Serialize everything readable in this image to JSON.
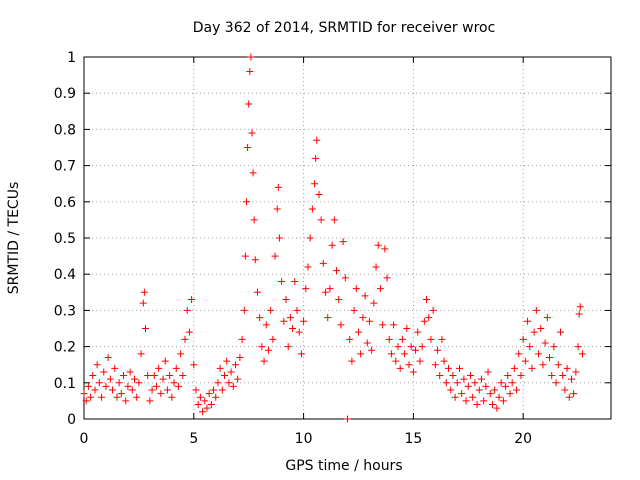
{
  "chart_data": {
    "type": "scatter",
    "title": "Day 362 of 2014, SRMTID for receiver wroc",
    "xlabel": "GPS time / hours",
    "ylabel": "SRMTID / TECUs",
    "xlim": [
      0,
      24
    ],
    "ylim": [
      0,
      1
    ],
    "xticks": [
      0,
      5,
      10,
      15,
      20
    ],
    "xtick_labels": [
      "0",
      "5",
      "10",
      "15",
      "20"
    ],
    "yticks": [
      0,
      0.1,
      0.2,
      0.3,
      0.4,
      0.5,
      0.6,
      0.7,
      0.8,
      0.9,
      1
    ],
    "ytick_labels": [
      "0",
      "0.1",
      "0.2",
      "0.3",
      "0.4",
      "0.5",
      "0.6",
      "0.7",
      "0.8",
      "0.9",
      "1"
    ],
    "grid": true,
    "marker": "+",
    "series": [
      {
        "name": "SRMTID",
        "color": "#ff0000",
        "points": [
          [
            0.0,
            0.07
          ],
          [
            0.1,
            0.05
          ],
          [
            0.2,
            0.09
          ],
          [
            0.3,
            0.06
          ],
          [
            0.4,
            0.12
          ],
          [
            0.5,
            0.08
          ],
          [
            0.6,
            0.15
          ],
          [
            0.7,
            0.1
          ],
          [
            0.8,
            0.06
          ],
          [
            0.9,
            0.13
          ],
          [
            1.0,
            0.09
          ],
          [
            1.1,
            0.17
          ],
          [
            1.2,
            0.11
          ],
          [
            1.3,
            0.08
          ],
          [
            1.4,
            0.14
          ],
          [
            1.5,
            0.06
          ],
          [
            1.6,
            0.1
          ],
          [
            1.7,
            0.07
          ],
          [
            1.8,
            0.12
          ],
          [
            1.9,
            0.05
          ],
          [
            2.0,
            0.09
          ],
          [
            2.1,
            0.13
          ],
          [
            2.2,
            0.08
          ],
          [
            2.3,
            0.11
          ],
          [
            2.4,
            0.06
          ],
          [
            2.5,
            0.1
          ],
          [
            2.6,
            0.18
          ],
          [
            2.7,
            0.32
          ],
          [
            2.75,
            0.35
          ],
          [
            2.8,
            0.25
          ],
          [
            2.9,
            0.12
          ],
          [
            3.0,
            0.05
          ],
          [
            3.1,
            0.08
          ],
          [
            3.2,
            0.12
          ],
          [
            3.3,
            0.09
          ],
          [
            3.4,
            0.14
          ],
          [
            3.5,
            0.07
          ],
          [
            3.6,
            0.11
          ],
          [
            3.7,
            0.16
          ],
          [
            3.8,
            0.08
          ],
          [
            3.9,
            0.12
          ],
          [
            4.0,
            0.06
          ],
          [
            4.1,
            0.1
          ],
          [
            4.2,
            0.14
          ],
          [
            4.3,
            0.09
          ],
          [
            4.4,
            0.18
          ],
          [
            4.5,
            0.12
          ],
          [
            4.6,
            0.22
          ],
          [
            4.7,
            0.3
          ],
          [
            4.8,
            0.24
          ],
          [
            4.9,
            0.33
          ],
          [
            5.0,
            0.15
          ],
          [
            5.1,
            0.08
          ],
          [
            5.2,
            0.04
          ],
          [
            5.3,
            0.06
          ],
          [
            5.4,
            0.02
          ],
          [
            5.5,
            0.05
          ],
          [
            5.6,
            0.03
          ],
          [
            5.7,
            0.07
          ],
          [
            5.8,
            0.04
          ],
          [
            5.9,
            0.08
          ],
          [
            6.0,
            0.06
          ],
          [
            6.1,
            0.1
          ],
          [
            6.2,
            0.14
          ],
          [
            6.3,
            0.08
          ],
          [
            6.4,
            0.12
          ],
          [
            6.5,
            0.16
          ],
          [
            6.6,
            0.1
          ],
          [
            6.7,
            0.13
          ],
          [
            6.8,
            0.09
          ],
          [
            6.9,
            0.15
          ],
          [
            7.0,
            0.11
          ],
          [
            7.1,
            0.17
          ],
          [
            7.2,
            0.22
          ],
          [
            7.3,
            0.3
          ],
          [
            7.35,
            0.45
          ],
          [
            7.4,
            0.6
          ],
          [
            7.45,
            0.75
          ],
          [
            7.5,
            0.87
          ],
          [
            7.55,
            0.96
          ],
          [
            7.6,
            1.0
          ],
          [
            7.65,
            0.79
          ],
          [
            7.7,
            0.68
          ],
          [
            7.75,
            0.55
          ],
          [
            7.8,
            0.44
          ],
          [
            7.9,
            0.35
          ],
          [
            8.0,
            0.28
          ],
          [
            8.1,
            0.2
          ],
          [
            8.2,
            0.16
          ],
          [
            8.3,
            0.26
          ],
          [
            8.4,
            0.19
          ],
          [
            8.5,
            0.3
          ],
          [
            8.6,
            0.22
          ],
          [
            8.7,
            0.45
          ],
          [
            8.8,
            0.58
          ],
          [
            8.85,
            0.64
          ],
          [
            8.9,
            0.5
          ],
          [
            9.0,
            0.38
          ],
          [
            9.1,
            0.27
          ],
          [
            9.2,
            0.33
          ],
          [
            9.3,
            0.2
          ],
          [
            9.4,
            0.28
          ],
          [
            9.5,
            0.25
          ],
          [
            9.6,
            0.38
          ],
          [
            9.7,
            0.3
          ],
          [
            9.8,
            0.24
          ],
          [
            9.9,
            0.18
          ],
          [
            10.0,
            0.27
          ],
          [
            10.1,
            0.36
          ],
          [
            10.2,
            0.42
          ],
          [
            10.3,
            0.5
          ],
          [
            10.4,
            0.58
          ],
          [
            10.5,
            0.65
          ],
          [
            10.55,
            0.72
          ],
          [
            10.6,
            0.77
          ],
          [
            10.7,
            0.62
          ],
          [
            10.8,
            0.55
          ],
          [
            10.9,
            0.43
          ],
          [
            11.0,
            0.35
          ],
          [
            11.1,
            0.28
          ],
          [
            11.2,
            0.36
          ],
          [
            11.3,
            0.48
          ],
          [
            11.4,
            0.55
          ],
          [
            11.5,
            0.41
          ],
          [
            11.6,
            0.33
          ],
          [
            11.7,
            0.26
          ],
          [
            11.8,
            0.49
          ],
          [
            11.9,
            0.39
          ],
          [
            12.0,
            0.0
          ],
          [
            12.1,
            0.22
          ],
          [
            12.2,
            0.16
          ],
          [
            12.3,
            0.3
          ],
          [
            12.4,
            0.36
          ],
          [
            12.5,
            0.24
          ],
          [
            12.6,
            0.18
          ],
          [
            12.7,
            0.28
          ],
          [
            12.8,
            0.34
          ],
          [
            12.9,
            0.21
          ],
          [
            13.0,
            0.27
          ],
          [
            13.1,
            0.19
          ],
          [
            13.2,
            0.32
          ],
          [
            13.3,
            0.42
          ],
          [
            13.4,
            0.48
          ],
          [
            13.5,
            0.36
          ],
          [
            13.6,
            0.26
          ],
          [
            13.7,
            0.47
          ],
          [
            13.8,
            0.39
          ],
          [
            13.9,
            0.22
          ],
          [
            14.0,
            0.18
          ],
          [
            14.1,
            0.26
          ],
          [
            14.2,
            0.16
          ],
          [
            14.3,
            0.2
          ],
          [
            14.4,
            0.14
          ],
          [
            14.5,
            0.22
          ],
          [
            14.6,
            0.18
          ],
          [
            14.7,
            0.25
          ],
          [
            14.8,
            0.15
          ],
          [
            14.9,
            0.2
          ],
          [
            15.0,
            0.13
          ],
          [
            15.1,
            0.19
          ],
          [
            15.2,
            0.24
          ],
          [
            15.3,
            0.16
          ],
          [
            15.4,
            0.2
          ],
          [
            15.5,
            0.27
          ],
          [
            15.6,
            0.33
          ],
          [
            15.7,
            0.28
          ],
          [
            15.8,
            0.22
          ],
          [
            15.9,
            0.3
          ],
          [
            16.0,
            0.15
          ],
          [
            16.1,
            0.19
          ],
          [
            16.2,
            0.12
          ],
          [
            16.3,
            0.22
          ],
          [
            16.4,
            0.16
          ],
          [
            16.5,
            0.1
          ],
          [
            16.6,
            0.14
          ],
          [
            16.7,
            0.08
          ],
          [
            16.8,
            0.12
          ],
          [
            16.9,
            0.06
          ],
          [
            17.0,
            0.1
          ],
          [
            17.1,
            0.14
          ],
          [
            17.2,
            0.07
          ],
          [
            17.3,
            0.11
          ],
          [
            17.4,
            0.05
          ],
          [
            17.5,
            0.09
          ],
          [
            17.6,
            0.12
          ],
          [
            17.7,
            0.06
          ],
          [
            17.8,
            0.1
          ],
          [
            17.9,
            0.04
          ],
          [
            18.0,
            0.08
          ],
          [
            18.1,
            0.11
          ],
          [
            18.2,
            0.05
          ],
          [
            18.3,
            0.09
          ],
          [
            18.4,
            0.13
          ],
          [
            18.5,
            0.07
          ],
          [
            18.6,
            0.04
          ],
          [
            18.7,
            0.08
          ],
          [
            18.8,
            0.03
          ],
          [
            18.9,
            0.06
          ],
          [
            19.0,
            0.1
          ],
          [
            19.1,
            0.05
          ],
          [
            19.2,
            0.09
          ],
          [
            19.3,
            0.12
          ],
          [
            19.4,
            0.07
          ],
          [
            19.5,
            0.1
          ],
          [
            19.6,
            0.14
          ],
          [
            19.7,
            0.08
          ],
          [
            19.8,
            0.18
          ],
          [
            19.9,
            0.12
          ],
          [
            20.0,
            0.22
          ],
          [
            20.1,
            0.16
          ],
          [
            20.2,
            0.27
          ],
          [
            20.3,
            0.2
          ],
          [
            20.4,
            0.14
          ],
          [
            20.5,
            0.24
          ],
          [
            20.6,
            0.3
          ],
          [
            20.7,
            0.18
          ],
          [
            20.8,
            0.25
          ],
          [
            20.9,
            0.15
          ],
          [
            21.0,
            0.21
          ],
          [
            21.1,
            0.28
          ],
          [
            21.2,
            0.17
          ],
          [
            21.3,
            0.12
          ],
          [
            21.4,
            0.2
          ],
          [
            21.5,
            0.1
          ],
          [
            21.6,
            0.15
          ],
          [
            21.7,
            0.24
          ],
          [
            21.8,
            0.12
          ],
          [
            21.9,
            0.08
          ],
          [
            22.0,
            0.14
          ],
          [
            22.1,
            0.06
          ],
          [
            22.2,
            0.11
          ],
          [
            22.3,
            0.07
          ],
          [
            22.4,
            0.13
          ],
          [
            22.5,
            0.2
          ],
          [
            22.55,
            0.29
          ],
          [
            22.6,
            0.31
          ],
          [
            22.7,
            0.18
          ]
        ]
      }
    ]
  }
}
